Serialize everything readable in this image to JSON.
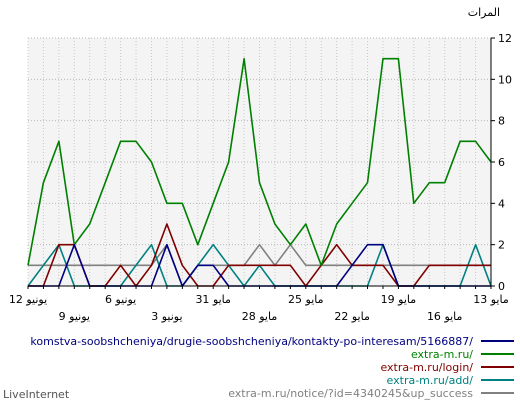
{
  "chart_data": {
    "type": "line",
    "ylabel": "المرات",
    "ylim": [
      0,
      12
    ],
    "yticks": [
      0,
      2,
      4,
      6,
      8,
      10,
      12
    ],
    "grid": true,
    "legend_placement": "bottom",
    "x": [
      "13 مايو",
      "14 مايو",
      "15 مايو",
      "16 مايو",
      "17 مايو",
      "18 مايو",
      "19 مايو",
      "20 مايو",
      "21 مايو",
      "22 مايو",
      "23 مايو",
      "24 مايو",
      "25 مايو",
      "26 مايو",
      "27 مايو",
      "28 مايو",
      "29 مايو",
      "30 مايو",
      "31 مايو",
      "1 يونيو",
      "2 يونيو",
      "3 يونيو",
      "4 يونيو",
      "5 يونيو",
      "6 يونيو",
      "7 يونيو",
      "8 يونيو",
      "9 يونيو",
      "10 يونيو",
      "11 يونيو",
      "12 يونيو"
    ],
    "xticks_upper": [
      {
        "index": 0,
        "label": "13 مايو"
      },
      {
        "index": 6,
        "label": "19 مايو"
      },
      {
        "index": 12,
        "label": "25 مايو"
      },
      {
        "index": 18,
        "label": "31 مايو"
      },
      {
        "index": 24,
        "label": "6 يونيو"
      },
      {
        "index": 30,
        "label": "12 يونيو"
      }
    ],
    "xticks_lower": [
      {
        "index": 3,
        "label": "16 مايو"
      },
      {
        "index": 9,
        "label": "22 مايو"
      },
      {
        "index": 15,
        "label": "28 مايو"
      },
      {
        "index": 21,
        "label": "3 يونيو"
      },
      {
        "index": 27,
        "label": "9 يونيو"
      }
    ],
    "series": [
      {
        "name": "komstva-soobshcheniya/drugie-soobshcheniya/kontakty-po-interesam/5166887/",
        "color": "#000080",
        "values": [
          0,
          0,
          0,
          0,
          0,
          0,
          0,
          2,
          2,
          1,
          0,
          0,
          0,
          0,
          0,
          0,
          0,
          0,
          1,
          1,
          0,
          2,
          0,
          0,
          0,
          0,
          0,
          2,
          0,
          0,
          0
        ]
      },
      {
        "name": "extra-m.ru/",
        "color": "#008000",
        "values": [
          6,
          7,
          7,
          5,
          5,
          4,
          11,
          11,
          5,
          4,
          3,
          1,
          3,
          2,
          3,
          5,
          11,
          6,
          4,
          2,
          4,
          4,
          6,
          7,
          7,
          5,
          3,
          2,
          7,
          5,
          1
        ]
      },
      {
        "name": "extra-m.ru/login/",
        "color": "#800000",
        "values": [
          1,
          1,
          1,
          1,
          1,
          0,
          0,
          1,
          1,
          1,
          2,
          1,
          0,
          1,
          1,
          1,
          1,
          1,
          0,
          0,
          1,
          3,
          1,
          0,
          1,
          0,
          0,
          2,
          2,
          0,
          0
        ]
      },
      {
        "name": "extra-m.ru/add/",
        "color": "#008080",
        "values": [
          0,
          2,
          0,
          0,
          0,
          0,
          0,
          2,
          0,
          0,
          0,
          0,
          0,
          0,
          0,
          1,
          0,
          1,
          2,
          1,
          0,
          0,
          2,
          1,
          0,
          0,
          0,
          0,
          2,
          1,
          0
        ]
      },
      {
        "name": "extra-m.ru/notice/?id=4340245&up_success",
        "color": "#808080",
        "values": [
          1,
          1,
          1,
          1,
          1,
          1,
          1,
          1,
          1,
          1,
          1,
          1,
          1,
          2,
          1,
          2,
          1,
          1,
          1,
          1,
          0,
          2,
          1,
          1,
          1,
          1,
          1,
          1,
          1,
          1,
          1
        ]
      }
    ]
  },
  "footer": {
    "brand": "LiveInternet"
  }
}
